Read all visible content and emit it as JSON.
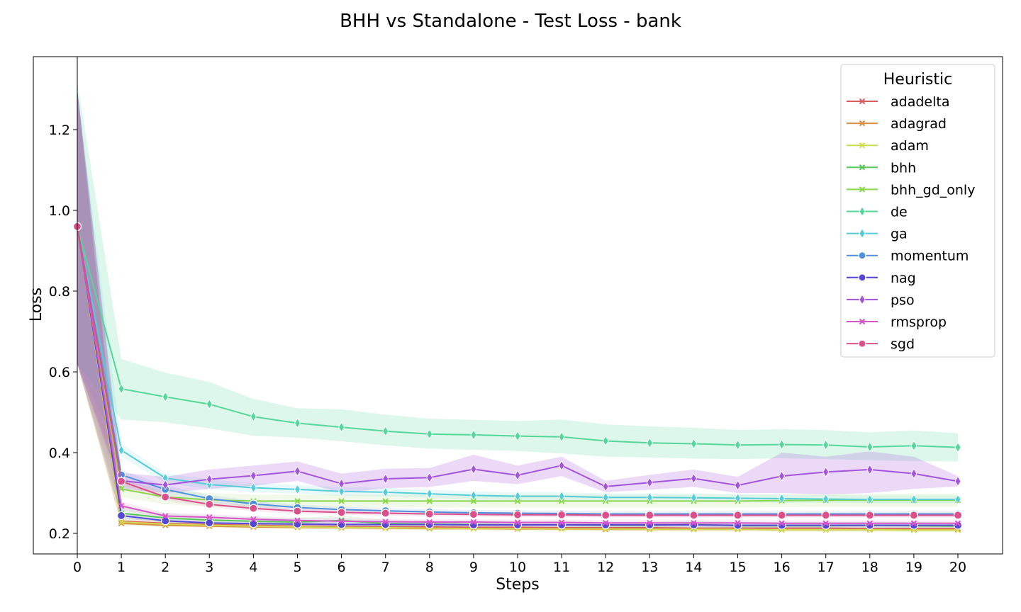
{
  "chart_data": {
    "type": "line",
    "title": "BHH vs Standalone - Test Loss - bank",
    "xlabel": "Steps",
    "ylabel": "Loss",
    "xlim": [
      0,
      20
    ],
    "ylim": [
      0.15,
      1.32
    ],
    "x_ticks": [
      0,
      1,
      2,
      3,
      4,
      5,
      6,
      7,
      8,
      9,
      10,
      11,
      12,
      13,
      14,
      15,
      16,
      17,
      18,
      19,
      20
    ],
    "y_ticks": [
      0.2,
      0.4,
      0.6,
      0.8,
      1.0,
      1.2
    ],
    "y_tick_labels": [
      "0.2",
      "0.4",
      "0.6",
      "0.8",
      "1.0",
      "1.2"
    ],
    "grid": false,
    "legend": {
      "title": "Heuristic",
      "placement": "top-right"
    },
    "x": [
      0,
      1,
      2,
      3,
      4,
      5,
      6,
      7,
      8,
      9,
      10,
      11,
      12,
      13,
      14,
      15,
      16,
      17,
      18,
      19,
      20
    ],
    "series": [
      {
        "name": "adadelta",
        "color": "#dc5d5d",
        "marker": "x",
        "values": [
          0.96,
          0.23,
          0.225,
          0.222,
          0.22,
          0.218,
          0.217,
          0.216,
          0.216,
          0.215,
          0.215,
          0.214,
          0.214,
          0.214,
          0.213,
          0.213,
          0.213,
          0.213,
          0.212,
          0.212,
          0.212
        ],
        "lower": [
          0.62,
          0.222,
          0.219,
          0.217,
          0.215,
          0.213,
          0.212,
          0.211,
          0.211,
          0.21,
          0.21,
          0.209,
          0.209,
          0.209,
          0.208,
          0.208,
          0.208,
          0.208,
          0.207,
          0.207,
          0.207
        ],
        "upper": [
          1.3,
          0.238,
          0.231,
          0.227,
          0.225,
          0.223,
          0.222,
          0.221,
          0.221,
          0.22,
          0.22,
          0.219,
          0.219,
          0.219,
          0.218,
          0.218,
          0.218,
          0.218,
          0.217,
          0.217,
          0.217
        ]
      },
      {
        "name": "adagrad",
        "color": "#d98b3e",
        "marker": "x",
        "values": [
          0.96,
          0.225,
          0.22,
          0.218,
          0.216,
          0.215,
          0.214,
          0.213,
          0.212,
          0.212,
          0.211,
          0.211,
          0.21,
          0.21,
          0.21,
          0.21,
          0.209,
          0.209,
          0.209,
          0.209,
          0.209
        ],
        "lower": [
          0.62,
          0.22,
          0.216,
          0.214,
          0.212,
          0.211,
          0.21,
          0.209,
          0.208,
          0.208,
          0.207,
          0.207,
          0.206,
          0.206,
          0.206,
          0.206,
          0.205,
          0.205,
          0.205,
          0.205,
          0.205
        ],
        "upper": [
          1.3,
          0.23,
          0.224,
          0.222,
          0.22,
          0.219,
          0.218,
          0.217,
          0.216,
          0.216,
          0.215,
          0.215,
          0.214,
          0.214,
          0.214,
          0.214,
          0.213,
          0.213,
          0.213,
          0.213,
          0.213
        ]
      },
      {
        "name": "adam",
        "color": "#cfdc50",
        "marker": "x",
        "values": [
          0.96,
          0.228,
          0.223,
          0.22,
          0.218,
          0.216,
          0.215,
          0.214,
          0.213,
          0.212,
          0.212,
          0.211,
          0.211,
          0.21,
          0.21,
          0.21,
          0.209,
          0.209,
          0.209,
          0.208,
          0.208
        ],
        "lower": [
          0.62,
          0.222,
          0.218,
          0.215,
          0.213,
          0.211,
          0.21,
          0.209,
          0.208,
          0.207,
          0.207,
          0.206,
          0.206,
          0.205,
          0.205,
          0.205,
          0.204,
          0.204,
          0.204,
          0.203,
          0.203
        ],
        "upper": [
          1.3,
          0.234,
          0.228,
          0.225,
          0.223,
          0.221,
          0.22,
          0.219,
          0.218,
          0.217,
          0.217,
          0.216,
          0.216,
          0.215,
          0.215,
          0.215,
          0.214,
          0.214,
          0.214,
          0.213,
          0.213
        ]
      },
      {
        "name": "bhh",
        "color": "#57c957",
        "marker": "x",
        "values": [
          0.96,
          0.25,
          0.238,
          0.233,
          0.23,
          0.228,
          0.232,
          0.224,
          0.223,
          0.222,
          0.221,
          0.221,
          0.22,
          0.22,
          0.222,
          0.219,
          0.219,
          0.219,
          0.22,
          0.219,
          0.218
        ],
        "lower": [
          0.62,
          0.236,
          0.228,
          0.224,
          0.222,
          0.22,
          0.222,
          0.216,
          0.215,
          0.214,
          0.213,
          0.213,
          0.212,
          0.212,
          0.213,
          0.211,
          0.211,
          0.211,
          0.212,
          0.211,
          0.21
        ],
        "upper": [
          1.3,
          0.266,
          0.25,
          0.243,
          0.24,
          0.238,
          0.244,
          0.233,
          0.232,
          0.231,
          0.23,
          0.23,
          0.229,
          0.229,
          0.232,
          0.228,
          0.228,
          0.228,
          0.229,
          0.228,
          0.227
        ]
      },
      {
        "name": "bhh_gd_only",
        "color": "#88d64a",
        "marker": "x",
        "values": [
          0.96,
          0.31,
          0.29,
          0.283,
          0.28,
          0.28,
          0.28,
          0.28,
          0.28,
          0.28,
          0.28,
          0.28,
          0.28,
          0.28,
          0.28,
          0.28,
          0.281,
          0.282,
          0.282,
          0.282,
          0.282
        ],
        "lower": [
          0.62,
          0.29,
          0.272,
          0.266,
          0.264,
          0.264,
          0.264,
          0.264,
          0.264,
          0.264,
          0.264,
          0.264,
          0.264,
          0.264,
          0.264,
          0.264,
          0.265,
          0.266,
          0.266,
          0.266,
          0.266
        ],
        "upper": [
          1.3,
          0.33,
          0.308,
          0.3,
          0.296,
          0.296,
          0.296,
          0.296,
          0.296,
          0.296,
          0.296,
          0.296,
          0.296,
          0.296,
          0.296,
          0.296,
          0.297,
          0.298,
          0.298,
          0.298,
          0.298
        ]
      },
      {
        "name": "de",
        "color": "#55d69a",
        "marker": "diamond",
        "values": [
          0.96,
          0.558,
          0.538,
          0.52,
          0.489,
          0.473,
          0.463,
          0.453,
          0.446,
          0.444,
          0.441,
          0.439,
          0.429,
          0.424,
          0.422,
          0.419,
          0.42,
          0.419,
          0.414,
          0.417,
          0.413
        ],
        "lower": [
          0.62,
          0.482,
          0.475,
          0.46,
          0.442,
          0.437,
          0.428,
          0.418,
          0.41,
          0.407,
          0.404,
          0.398,
          0.39,
          0.388,
          0.385,
          0.384,
          0.386,
          0.384,
          0.381,
          0.379,
          0.378
        ],
        "upper": [
          1.32,
          0.632,
          0.598,
          0.575,
          0.533,
          0.51,
          0.507,
          0.494,
          0.484,
          0.481,
          0.478,
          0.482,
          0.47,
          0.465,
          0.462,
          0.456,
          0.458,
          0.456,
          0.45,
          0.455,
          0.448
        ]
      },
      {
        "name": "ga",
        "color": "#55cdd9",
        "marker": "diamond",
        "values": [
          0.96,
          0.406,
          0.337,
          0.321,
          0.313,
          0.309,
          0.304,
          0.302,
          0.298,
          0.294,
          0.292,
          0.292,
          0.289,
          0.289,
          0.288,
          0.287,
          0.286,
          0.285,
          0.284,
          0.284,
          0.284
        ],
        "lower": [
          0.62,
          0.39,
          0.325,
          0.309,
          0.302,
          0.298,
          0.293,
          0.291,
          0.288,
          0.284,
          0.282,
          0.282,
          0.279,
          0.279,
          0.278,
          0.277,
          0.276,
          0.275,
          0.274,
          0.274,
          0.274
        ],
        "upper": [
          1.3,
          0.422,
          0.349,
          0.333,
          0.324,
          0.32,
          0.315,
          0.313,
          0.308,
          0.304,
          0.302,
          0.302,
          0.299,
          0.299,
          0.298,
          0.297,
          0.296,
          0.295,
          0.294,
          0.294,
          0.294
        ]
      },
      {
        "name": "momentum",
        "color": "#4f8fdc",
        "marker": "circle",
        "values": [
          0.96,
          0.345,
          0.309,
          0.286,
          0.273,
          0.264,
          0.259,
          0.256,
          0.253,
          0.251,
          0.25,
          0.249,
          0.248,
          0.248,
          0.248,
          0.248,
          0.248,
          0.248,
          0.248,
          0.248,
          0.248
        ],
        "lower": [
          0.62,
          0.333,
          0.299,
          0.277,
          0.265,
          0.257,
          0.252,
          0.249,
          0.246,
          0.244,
          0.243,
          0.242,
          0.241,
          0.241,
          0.241,
          0.241,
          0.241,
          0.241,
          0.241,
          0.241,
          0.241
        ],
        "upper": [
          1.3,
          0.357,
          0.319,
          0.295,
          0.281,
          0.271,
          0.266,
          0.263,
          0.26,
          0.258,
          0.257,
          0.256,
          0.255,
          0.255,
          0.255,
          0.255,
          0.255,
          0.255,
          0.255,
          0.255,
          0.255
        ]
      },
      {
        "name": "nag",
        "color": "#5447d6",
        "marker": "circle",
        "values": [
          0.96,
          0.244,
          0.231,
          0.226,
          0.224,
          0.223,
          0.222,
          0.222,
          0.222,
          0.221,
          0.221,
          0.221,
          0.221,
          0.221,
          0.221,
          0.22,
          0.22,
          0.22,
          0.22,
          0.22,
          0.22
        ],
        "lower": [
          0.62,
          0.238,
          0.226,
          0.221,
          0.219,
          0.218,
          0.217,
          0.217,
          0.217,
          0.216,
          0.216,
          0.216,
          0.216,
          0.216,
          0.216,
          0.215,
          0.215,
          0.215,
          0.215,
          0.215,
          0.215
        ],
        "upper": [
          1.3,
          0.25,
          0.236,
          0.231,
          0.229,
          0.228,
          0.227,
          0.227,
          0.227,
          0.226,
          0.226,
          0.226,
          0.226,
          0.226,
          0.226,
          0.225,
          0.225,
          0.225,
          0.225,
          0.225,
          0.225
        ]
      },
      {
        "name": "pso",
        "color": "#a354dc",
        "marker": "diamond",
        "values": [
          0.96,
          0.33,
          0.32,
          0.334,
          0.343,
          0.354,
          0.323,
          0.335,
          0.338,
          0.359,
          0.344,
          0.368,
          0.316,
          0.326,
          0.336,
          0.319,
          0.342,
          0.352,
          0.358,
          0.348,
          0.329
        ],
        "lower": [
          0.62,
          0.31,
          0.3,
          0.31,
          0.318,
          0.33,
          0.3,
          0.312,
          0.315,
          0.33,
          0.322,
          0.342,
          0.302,
          0.308,
          0.315,
          0.3,
          0.3,
          0.296,
          0.3,
          0.31,
          0.316
        ],
        "upper": [
          1.3,
          0.35,
          0.34,
          0.358,
          0.368,
          0.378,
          0.348,
          0.36,
          0.362,
          0.395,
          0.368,
          0.39,
          0.33,
          0.345,
          0.358,
          0.34,
          0.4,
          0.39,
          0.403,
          0.39,
          0.342
        ]
      },
      {
        "name": "rmsprop",
        "color": "#d954c9",
        "marker": "x",
        "values": [
          0.96,
          0.268,
          0.243,
          0.24,
          0.235,
          0.232,
          0.23,
          0.229,
          0.228,
          0.228,
          0.227,
          0.227,
          0.226,
          0.226,
          0.226,
          0.226,
          0.225,
          0.225,
          0.225,
          0.225,
          0.225
        ],
        "lower": [
          0.62,
          0.258,
          0.235,
          0.232,
          0.228,
          0.225,
          0.223,
          0.222,
          0.221,
          0.221,
          0.22,
          0.22,
          0.219,
          0.219,
          0.219,
          0.219,
          0.218,
          0.218,
          0.218,
          0.218,
          0.218
        ],
        "upper": [
          1.3,
          0.278,
          0.251,
          0.248,
          0.242,
          0.239,
          0.237,
          0.236,
          0.235,
          0.235,
          0.234,
          0.234,
          0.233,
          0.233,
          0.233,
          0.233,
          0.232,
          0.232,
          0.232,
          0.232,
          0.232
        ]
      },
      {
        "name": "sgd",
        "color": "#dc4f8b",
        "marker": "circle",
        "values": [
          0.96,
          0.329,
          0.29,
          0.272,
          0.262,
          0.255,
          0.252,
          0.25,
          0.248,
          0.247,
          0.246,
          0.246,
          0.245,
          0.245,
          0.245,
          0.245,
          0.245,
          0.245,
          0.245,
          0.245,
          0.245
        ],
        "lower": [
          0.62,
          0.319,
          0.282,
          0.265,
          0.255,
          0.249,
          0.246,
          0.244,
          0.242,
          0.241,
          0.24,
          0.24,
          0.239,
          0.239,
          0.239,
          0.239,
          0.239,
          0.239,
          0.239,
          0.239,
          0.239
        ],
        "upper": [
          1.3,
          0.339,
          0.298,
          0.279,
          0.269,
          0.261,
          0.258,
          0.256,
          0.254,
          0.253,
          0.252,
          0.252,
          0.251,
          0.251,
          0.251,
          0.251,
          0.251,
          0.251,
          0.251,
          0.251,
          0.251
        ]
      }
    ]
  }
}
